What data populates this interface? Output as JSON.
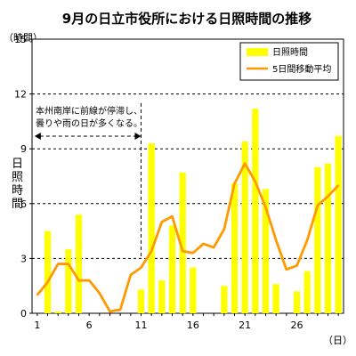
{
  "chart_data": {
    "type": "bar",
    "title": "9月の日立市役所における日照時間の推移",
    "y_unit_label": "（時間）",
    "x_unit_label": "（日）",
    "ylabel_chars": [
      "日",
      "照",
      "時",
      "間"
    ],
    "ylim": [
      0,
      15
    ],
    "y_ticks": [
      0,
      3,
      6,
      9,
      12,
      15
    ],
    "dashed_grid_at": [
      3,
      6,
      9,
      12
    ],
    "xlim": [
      0.5,
      30.5
    ],
    "x_ticks": [
      1,
      6,
      11,
      16,
      21,
      26
    ],
    "days": [
      1,
      2,
      3,
      4,
      5,
      6,
      7,
      8,
      9,
      10,
      11,
      12,
      13,
      14,
      15,
      16,
      17,
      18,
      19,
      20,
      21,
      22,
      23,
      24,
      25,
      26,
      27,
      28,
      29,
      30
    ],
    "series": [
      {
        "name": "日照時間",
        "kind": "bar",
        "color": "#ffff00",
        "values": [
          0,
          4.5,
          0.1,
          3.5,
          5.4,
          0,
          0,
          0,
          0,
          0,
          1.3,
          9.3,
          1.8,
          4.8,
          7.7,
          2.5,
          0,
          0,
          1.5,
          7.1,
          9.4,
          11.2,
          6.8,
          1.6,
          0,
          1.2,
          2.3,
          8.0,
          8.2,
          9.7
        ]
      },
      {
        "name": "5日間移動平均",
        "kind": "line",
        "color": "#ff9900",
        "values": [
          1.0,
          1.7,
          2.7,
          2.7,
          1.8,
          1.8,
          1.1,
          0.1,
          0.2,
          2.1,
          2.5,
          3.4,
          5.0,
          5.3,
          3.4,
          3.3,
          3.8,
          3.6,
          4.6,
          7.1,
          8.2,
          7.2,
          5.8,
          4.0,
          2.4,
          2.6,
          4.0,
          5.9,
          6.4,
          7.0
        ]
      }
    ],
    "legend": {
      "position": "top-right",
      "items": [
        {
          "label": "日照時間",
          "swatch": "bar",
          "color": "#ffff00"
        },
        {
          "label": "5日間移動平均",
          "swatch": "line",
          "color": "#ff9900"
        }
      ]
    },
    "annotation": {
      "lines": [
        "本州南岸に前線が停滞し、",
        "曇りや雨の日が多くなる。"
      ],
      "span_days": [
        1,
        11
      ]
    }
  }
}
